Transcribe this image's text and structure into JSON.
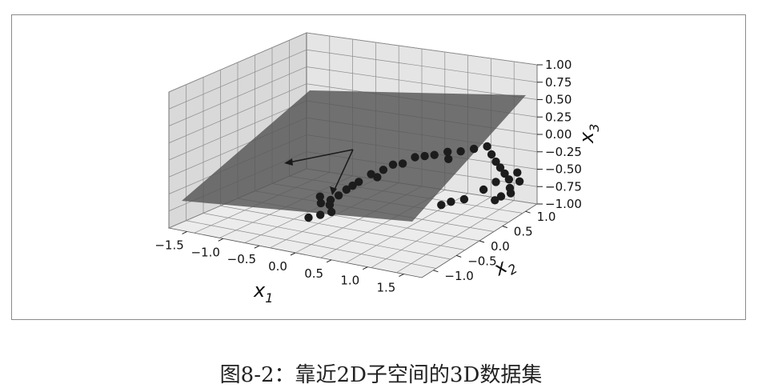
{
  "caption": "图8-2：靠近2D子空间的3D数据集",
  "chart_data": {
    "type": "scatter",
    "projection": "3d",
    "title": "",
    "xlabel": "x",
    "xlabel_sub": "1",
    "ylabel": "x",
    "ylabel_sub": "2",
    "zlabel": "x",
    "zlabel_sub": "3",
    "xlim": [
      -1.8,
      1.8
    ],
    "ylim": [
      -1.3,
      1.3
    ],
    "zlim": [
      -1.0,
      1.0
    ],
    "x_ticks": [
      "−1.5",
      "−1.0",
      "−0.5",
      "0.0",
      "0.5",
      "1.0",
      "1.5"
    ],
    "y_ticks": [
      "−1.0",
      "−0.5",
      "0.0",
      "0.5",
      "1.0"
    ],
    "z_ticks": [
      "−1.00",
      "−0.75",
      "−0.50",
      "−0.25",
      "0.00",
      "0.25",
      "0.50",
      "0.75",
      "1.00"
    ],
    "grid": true,
    "colors": {
      "points": "#1c1c1c",
      "plane": "#555555",
      "pane": "#e2e2e2",
      "grid": "#8c8c8c"
    },
    "plane": "gray translucent plane fit to data",
    "vectors": "two principal component arrows from the mean",
    "points": [
      {
        "x": -1.15,
        "y": -0.35,
        "z": -0.35
      },
      {
        "x": -1.05,
        "y": -0.3,
        "z": -0.3
      },
      {
        "x": -1.1,
        "y": -0.25,
        "z": -0.4
      },
      {
        "x": -1.2,
        "y": -0.3,
        "z": -0.28
      },
      {
        "x": -0.95,
        "y": -0.28,
        "z": -0.22
      },
      {
        "x": -1.0,
        "y": -0.35,
        "z": -0.45
      },
      {
        "x": -1.12,
        "y": -0.4,
        "z": -0.5
      },
      {
        "x": -0.9,
        "y": -0.2,
        "z": -0.15
      },
      {
        "x": -0.8,
        "y": -0.1,
        "z": -0.05
      },
      {
        "x": -0.7,
        "y": 0.0,
        "z": 0.05
      },
      {
        "x": -0.6,
        "y": 0.1,
        "z": 0.1
      },
      {
        "x": -0.5,
        "y": 0.15,
        "z": 0.18
      },
      {
        "x": -0.4,
        "y": 0.2,
        "z": 0.2
      },
      {
        "x": -0.3,
        "y": 0.3,
        "z": 0.28
      },
      {
        "x": -0.2,
        "y": 0.35,
        "z": 0.3
      },
      {
        "x": -0.1,
        "y": 0.4,
        "z": 0.32
      },
      {
        "x": 0.05,
        "y": 0.45,
        "z": 0.38
      },
      {
        "x": 0.2,
        "y": 0.5,
        "z": 0.4
      },
      {
        "x": 0.35,
        "y": 0.55,
        "z": 0.45
      },
      {
        "x": 0.5,
        "y": 0.6,
        "z": 0.5
      },
      {
        "x": 0.6,
        "y": 0.55,
        "z": 0.42
      },
      {
        "x": 0.7,
        "y": 0.5,
        "z": 0.35
      },
      {
        "x": 0.8,
        "y": 0.45,
        "z": 0.3
      },
      {
        "x": 0.9,
        "y": 0.4,
        "z": 0.25
      },
      {
        "x": 1.0,
        "y": 0.35,
        "z": 0.2
      },
      {
        "x": 1.05,
        "y": 0.3,
        "z": 0.1
      },
      {
        "x": 1.1,
        "y": 0.25,
        "z": 0.05
      },
      {
        "x": 1.0,
        "y": 0.2,
        "z": 0.0
      },
      {
        "x": 0.95,
        "y": 0.15,
        "z": -0.05
      },
      {
        "x": 1.08,
        "y": 0.4,
        "z": 0.3
      },
      {
        "x": 1.15,
        "y": 0.35,
        "z": 0.2
      },
      {
        "x": 0.85,
        "y": 0.3,
        "z": 0.15
      },
      {
        "x": 0.55,
        "y": 0.1,
        "z": -0.1
      },
      {
        "x": 0.4,
        "y": 0.05,
        "z": -0.15
      },
      {
        "x": 0.3,
        "y": 0.0,
        "z": -0.2
      },
      {
        "x": 0.75,
        "y": 0.2,
        "z": 0.05
      },
      {
        "x": -1.25,
        "y": -0.45,
        "z": -0.55
      },
      {
        "x": -0.85,
        "y": -0.15,
        "z": -0.1
      },
      {
        "x": -0.65,
        "y": 0.05,
        "z": 0.0
      },
      {
        "x": 0.1,
        "y": 0.4,
        "z": 0.3
      }
    ]
  }
}
